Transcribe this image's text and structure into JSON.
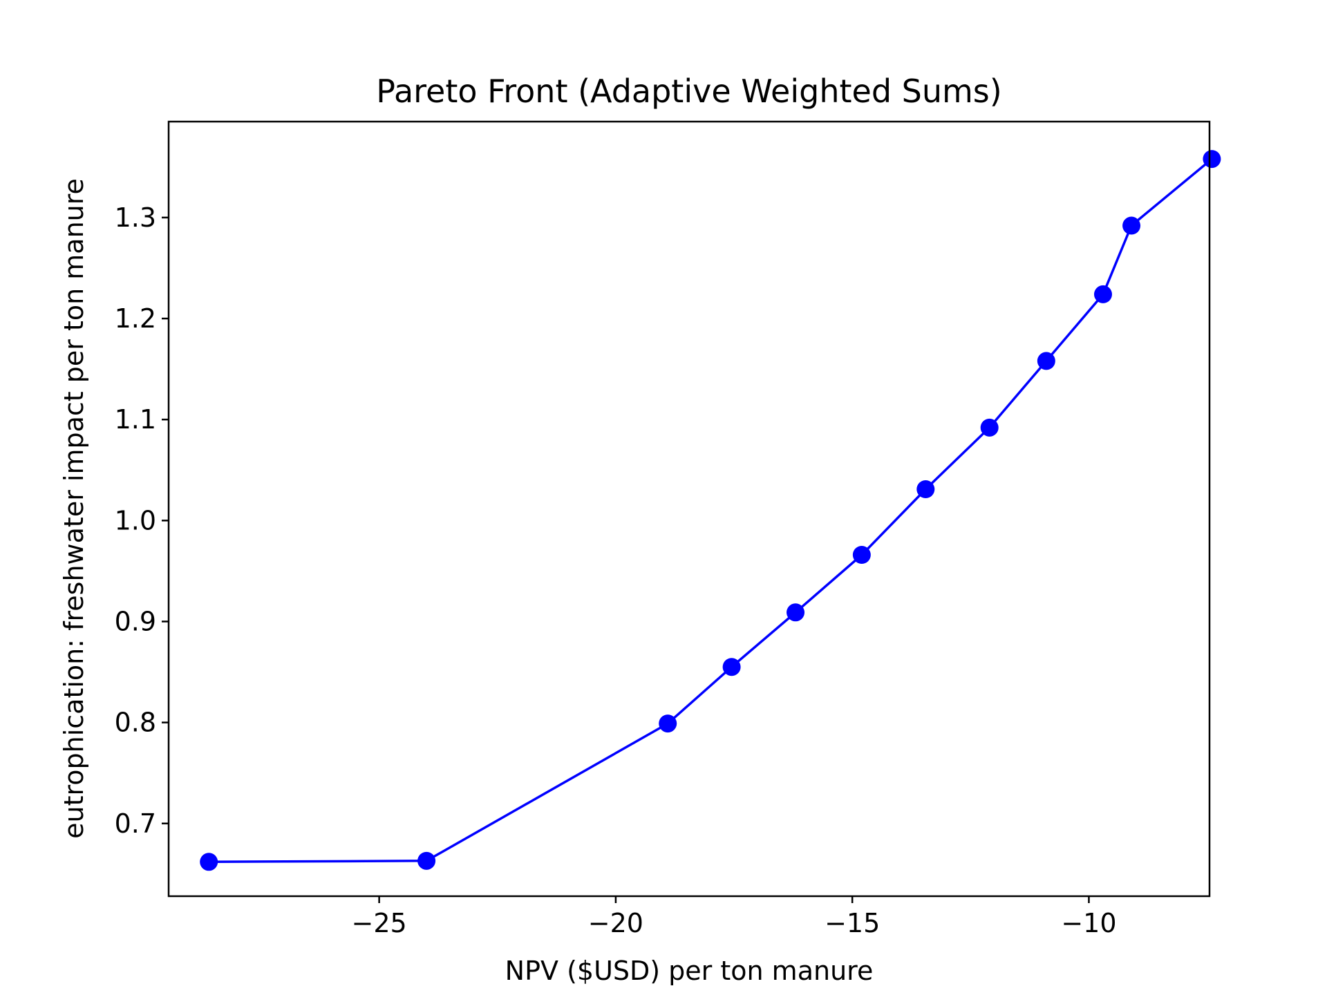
{
  "chart_data": {
    "type": "line",
    "title": "Pareto Front (Adaptive Weighted Sums)",
    "xlabel": "NPV ($USD) per ton manure",
    "ylabel": "eutrophication: freshwater impact per ton manure",
    "xlim": [
      -29.45,
      -7.45
    ],
    "ylim": [
      0.628,
      1.395
    ],
    "xticks": [
      -25,
      -20,
      -15,
      -10
    ],
    "xtick_labels": [
      "−25",
      "−20",
      "−15",
      "−10"
    ],
    "yticks": [
      0.7,
      0.8,
      0.9,
      1.0,
      1.1,
      1.2,
      1.3
    ],
    "ytick_labels": [
      "0.7",
      "0.8",
      "0.9",
      "1.0",
      "1.1",
      "1.2",
      "1.3"
    ],
    "grid": false,
    "legend": false,
    "series": [
      {
        "color": "#0000ff",
        "marker": "circle",
        "x": [
          -28.6,
          -24.0,
          -18.9,
          -17.55,
          -16.2,
          -14.8,
          -13.45,
          -12.1,
          -10.9,
          -9.7,
          -9.1,
          -7.4
        ],
        "y": [
          0.662,
          0.663,
          0.799,
          0.855,
          0.909,
          0.966,
          1.031,
          1.092,
          1.158,
          1.224,
          1.292,
          1.358
        ]
      }
    ]
  }
}
